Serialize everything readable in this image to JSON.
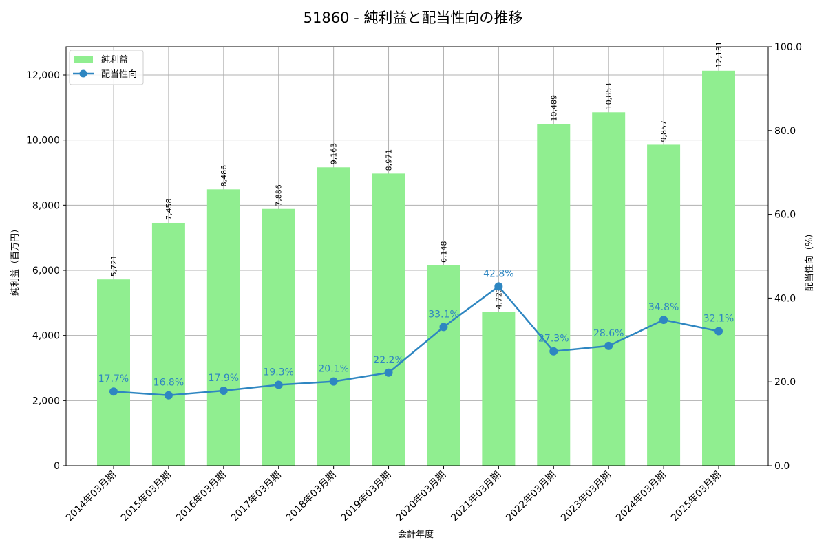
{
  "title": "51860 - 純利益と配当性向の推移",
  "legend": {
    "bar_label": "純利益",
    "line_label": "配当性向"
  },
  "axes": {
    "xlabel": "会計年度",
    "ylabel_left": "純利益（百万円）",
    "ylabel_right": "配当性向（%）",
    "left_ticks": [
      "0",
      "2,000",
      "4,000",
      "6,000",
      "8,000",
      "10,000",
      "12,000"
    ],
    "right_ticks": [
      "0.0",
      "20.0",
      "40.0",
      "60.0",
      "80.0",
      "100.0"
    ]
  },
  "colors": {
    "bar": "#90ee90",
    "line": "#2e86c1",
    "grid": "#b0b0b0",
    "text": "#000000"
  },
  "chart_data": {
    "type": "bar",
    "title": "51860 - 純利益と配当性向の推移",
    "xlabel": "会計年度",
    "ylabel": "純利益（百万円）",
    "ylabel_right": "配当性向（%）",
    "categories": [
      "2014年03月期",
      "2015年03月期",
      "2016年03月期",
      "2017年03月期",
      "2018年03月期",
      "2019年03月期",
      "2020年03月期",
      "2021年03月期",
      "2022年03月期",
      "2023年03月期",
      "2024年03月期",
      "2025年03月期"
    ],
    "series": [
      {
        "name": "純利益",
        "type": "bar",
        "axis": "left",
        "values": [
          5721,
          7458,
          8486,
          7886,
          9163,
          8971,
          6148,
          4723,
          10489,
          10853,
          9857,
          12131
        ],
        "labels": [
          "5,721",
          "7,458",
          "8,486",
          "7,886",
          "9,163",
          "8,971",
          "6,148",
          "4,723",
          "10,489",
          "10,853",
          "9,857",
          "12,131"
        ]
      },
      {
        "name": "配当性向",
        "type": "line",
        "axis": "right",
        "values": [
          17.7,
          16.8,
          17.9,
          19.3,
          20.1,
          22.2,
          33.1,
          42.8,
          27.3,
          28.6,
          34.8,
          32.1
        ],
        "labels": [
          "17.7%",
          "16.8%",
          "17.9%",
          "19.3%",
          "20.1%",
          "22.2%",
          "33.1%",
          "42.8%",
          "27.3%",
          "28.6%",
          "34.8%",
          "32.1%"
        ]
      }
    ],
    "ylim": [
      0,
      12866
    ],
    "ylim_right": [
      0,
      100
    ],
    "grid": true,
    "legend_position": "upper left"
  }
}
